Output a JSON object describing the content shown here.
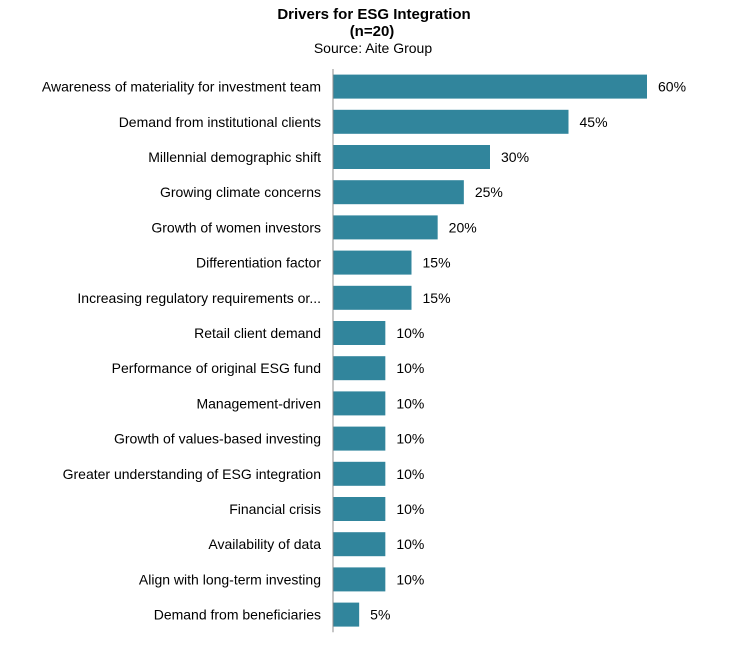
{
  "chart_data": {
    "type": "bar",
    "orientation": "horizontal",
    "title": "Drivers for ESG Integration",
    "subtitle": "(n=20)",
    "source": "Source: Aite Group",
    "categories": [
      "Awareness of materiality for investment team",
      "Demand from institutional clients",
      "Millennial demographic shift",
      "Growing climate concerns",
      "Growth of women investors",
      "Differentiation factor",
      "Increasing regulatory requirements or...",
      "Retail client demand",
      "Performance of original ESG fund",
      "Management-driven",
      "Growth of values-based investing",
      "Greater understanding of ESG integration",
      "Financial crisis",
      "Availability of data",
      "Align with long-term investing",
      "Demand from beneficiaries"
    ],
    "values": [
      60,
      45,
      30,
      25,
      20,
      15,
      15,
      10,
      10,
      10,
      10,
      10,
      10,
      10,
      10,
      5
    ],
    "value_labels": [
      "60%",
      "45%",
      "30%",
      "25%",
      "20%",
      "15%",
      "15%",
      "10%",
      "10%",
      "10%",
      "10%",
      "10%",
      "10%",
      "10%",
      "10%",
      "5%"
    ],
    "unit": "%",
    "xlim": [
      0,
      60
    ],
    "grid": false,
    "bar_color": "#31859C"
  }
}
